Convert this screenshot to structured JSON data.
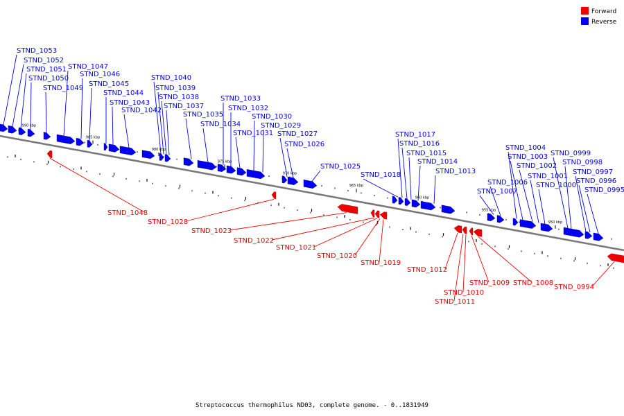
{
  "legend": [
    {
      "label": "Forward",
      "color": "#ee0000"
    },
    {
      "label": "Reverse",
      "color": "#0000ee"
    }
  ],
  "caption": "Streptococcus thermophilus ND03, complete genome. - 0..1831949",
  "ticks": [
    "990 kbp",
    "985 kbp",
    "980 kbp",
    "975 kbp",
    "970 kbp",
    "965 kbp",
    "960 kbp",
    "955 kbp",
    "950 kbp"
  ],
  "genes_reverse": [
    "STND_1053",
    "STND_1052",
    "STND_1051",
    "STND_1050",
    "STND_1049",
    "STND_1047",
    "STND_1046",
    "STND_1045",
    "STND_1044",
    "STND_1043",
    "STND_1042",
    "STND_1040",
    "STND_1039",
    "STND_1038",
    "STND_1037",
    "STND_1035",
    "STND_1034",
    "STND_1033",
    "STND_1032",
    "STND_1031",
    "STND_1030",
    "STND_1029",
    "STND_1027",
    "STND_1026",
    "STND_1025",
    "STND_1018",
    "STND_1017",
    "STND_1016",
    "STND_1015",
    "STND_1014",
    "STND_1013",
    "STND_1007",
    "STND_1006",
    "STND_1004",
    "STND_1003",
    "STND_1002",
    "STND_1001",
    "STND_1000",
    "STND_0999",
    "STND_0998",
    "STND_0997",
    "STND_0996",
    "STND_0995"
  ],
  "genes_forward": [
    "STND_1048",
    "STND_1028",
    "STND_1023",
    "STND_1022",
    "STND_1021",
    "STND_1020",
    "STND_1019",
    "STND_1012",
    "STND_1011",
    "STND_1010",
    "STND_1009",
    "STND_1008",
    "STND_0994"
  ]
}
